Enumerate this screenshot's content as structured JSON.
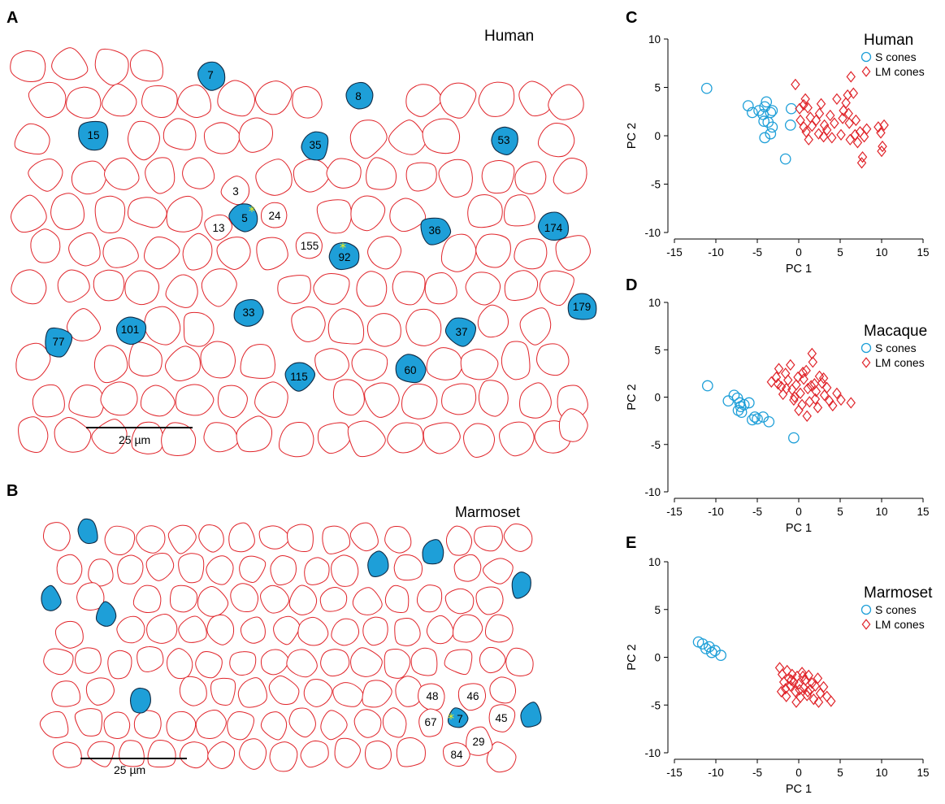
{
  "panels": {
    "A": {
      "letter": "A",
      "species": "Human",
      "scale_bar": "25 µm",
      "labels": [
        "7",
        "8",
        "15",
        "35",
        "53",
        "3",
        "5",
        "24",
        "13",
        "155",
        "92",
        "36",
        "174",
        "33",
        "101",
        "77",
        "37",
        "179",
        "115",
        "60"
      ]
    },
    "B": {
      "letter": "B",
      "species": "Marmoset",
      "scale_bar": "25 µm",
      "labels": [
        "48",
        "46",
        "67",
        "7",
        "45",
        "29",
        "84"
      ]
    },
    "C": {
      "letter": "C"
    },
    "D": {
      "letter": "D"
    },
    "E": {
      "letter": "E"
    }
  },
  "colors": {
    "s_cone": "#1e9fd8",
    "lm_cone": "#e0242a",
    "s_cone_marker": "#1e9fd8",
    "lm_cone_marker": "#e0242a",
    "star": "#f4f01a"
  },
  "chart_data": [
    {
      "id": "C",
      "type": "scatter",
      "title": "Human",
      "xlabel": "PC 1",
      "ylabel": "PC 2",
      "xlim": [
        -15,
        15
      ],
      "ylim": [
        -10,
        10
      ],
      "xticks": [
        "-15",
        "-10",
        "-5",
        "0",
        "5",
        "10",
        "15"
      ],
      "yticks": [
        "10",
        "5",
        "0",
        "-5",
        "-10"
      ],
      "legend_position": "top-right",
      "series": [
        {
          "name": "S cones",
          "marker": "circle",
          "color": "#1e9fd8",
          "points": [
            [
              -11.1,
              4.9
            ],
            [
              -6.1,
              3.1
            ],
            [
              -5.6,
              2.4
            ],
            [
              -4.8,
              2.6
            ],
            [
              -4.3,
              2.2
            ],
            [
              -3.9,
              3.5
            ],
            [
              -3.4,
              2.4
            ],
            [
              -3.2,
              2.6
            ],
            [
              -4.1,
              3.0
            ],
            [
              -3.7,
              1.4
            ],
            [
              -4.2,
              1.5
            ],
            [
              -3.2,
              0.9
            ],
            [
              -3.4,
              0.2
            ],
            [
              -4.1,
              -0.2
            ],
            [
              -0.9,
              2.8
            ],
            [
              -1.0,
              1.1
            ],
            [
              -1.6,
              -2.4
            ]
          ]
        },
        {
          "name": "LM cones",
          "marker": "diamond",
          "color": "#e0242a",
          "points": [
            [
              -0.4,
              5.3
            ],
            [
              0.1,
              2.8
            ],
            [
              0.6,
              3.2
            ],
            [
              0.8,
              3.8
            ],
            [
              1.1,
              2.9
            ],
            [
              0.2,
              1.6
            ],
            [
              0.6,
              0.9
            ],
            [
              0.9,
              0.4
            ],
            [
              1.2,
              -0.4
            ],
            [
              1.6,
              1.0
            ],
            [
              2.1,
              1.6
            ],
            [
              2.5,
              2.3
            ],
            [
              2.7,
              3.3
            ],
            [
              2.4,
              0.2
            ],
            [
              3.1,
              1.1
            ],
            [
              3.4,
              0.6
            ],
            [
              3.8,
              2.1
            ],
            [
              4.3,
              1.3
            ],
            [
              4.6,
              3.8
            ],
            [
              5.1,
              0.1
            ],
            [
              5.4,
              2.6
            ],
            [
              5.7,
              3.4
            ],
            [
              5.9,
              4.2
            ],
            [
              6.0,
              2.3
            ],
            [
              6.1,
              1.3
            ],
            [
              6.3,
              6.1
            ],
            [
              6.6,
              4.4
            ],
            [
              6.9,
              1.6
            ],
            [
              6.2,
              -0.4
            ],
            [
              6.8,
              0.1
            ],
            [
              7.1,
              -0.7
            ],
            [
              7.4,
              0.4
            ],
            [
              7.9,
              -0.1
            ],
            [
              8.2,
              0.7
            ],
            [
              7.7,
              -2.2
            ],
            [
              7.6,
              -2.8
            ],
            [
              9.6,
              0.9
            ],
            [
              9.9,
              0.3
            ],
            [
              10.1,
              -1.1
            ],
            [
              10.3,
              1.1
            ],
            [
              10.0,
              -1.6
            ],
            [
              5.3,
              1.8
            ],
            [
              4.0,
              -0.2
            ],
            [
              3.0,
              -0.1
            ],
            [
              1.4,
              1.9
            ]
          ]
        }
      ]
    },
    {
      "id": "D",
      "type": "scatter",
      "title": "Macaque",
      "xlabel": "PC 1",
      "ylabel": "PC 2",
      "xlim": [
        -15,
        15
      ],
      "ylim": [
        -10,
        10
      ],
      "xticks": [
        "-15",
        "-10",
        "-5",
        "0",
        "5",
        "10",
        "15"
      ],
      "yticks": [
        "10",
        "5",
        "0",
        "-5",
        "-10"
      ],
      "legend_position": "top-right",
      "series": [
        {
          "name": "S cones",
          "marker": "circle",
          "color": "#1e9fd8",
          "points": [
            [
              -11.0,
              1.2
            ],
            [
              -8.5,
              -0.4
            ],
            [
              -7.8,
              0.2
            ],
            [
              -7.4,
              -0.1
            ],
            [
              -7.1,
              -0.6
            ],
            [
              -7.3,
              -1.4
            ],
            [
              -6.9,
              -1.6
            ],
            [
              -6.6,
              -0.8
            ],
            [
              -6.0,
              -0.6
            ],
            [
              -5.6,
              -2.4
            ],
            [
              -5.3,
              -2.1
            ],
            [
              -5.0,
              -2.3
            ],
            [
              -4.3,
              -2.1
            ],
            [
              -3.6,
              -2.6
            ],
            [
              -0.6,
              -4.3
            ],
            [
              -7.0,
              -1.0
            ]
          ]
        },
        {
          "name": "LM cones",
          "marker": "diamond",
          "color": "#e0242a",
          "points": [
            [
              -3.3,
              1.6
            ],
            [
              -2.7,
              2.1
            ],
            [
              -2.4,
              3.0
            ],
            [
              -2.1,
              1.1
            ],
            [
              -1.9,
              0.3
            ],
            [
              -1.6,
              2.5
            ],
            [
              -1.3,
              1.8
            ],
            [
              -1.0,
              3.4
            ],
            [
              -0.8,
              0.8
            ],
            [
              -0.6,
              -0.3
            ],
            [
              -0.3,
              1.3
            ],
            [
              -0.1,
              2.1
            ],
            [
              0.2,
              0.4
            ],
            [
              0.4,
              -0.8
            ],
            [
              0.6,
              1.9
            ],
            [
              0.9,
              2.8
            ],
            [
              1.1,
              0.9
            ],
            [
              1.3,
              -0.5
            ],
            [
              1.6,
              4.6
            ],
            [
              1.7,
              3.7
            ],
            [
              1.9,
              1.4
            ],
            [
              2.1,
              0.6
            ],
            [
              2.3,
              -1.1
            ],
            [
              2.5,
              2.2
            ],
            [
              2.8,
              1.5
            ],
            [
              3.1,
              0.2
            ],
            [
              3.4,
              1.0
            ],
            [
              3.7,
              -0.4
            ],
            [
              4.1,
              -0.9
            ],
            [
              4.6,
              0.4
            ],
            [
              5.1,
              -0.3
            ],
            [
              6.3,
              -0.6
            ],
            [
              0.0,
              -1.4
            ],
            [
              1.0,
              -2.0
            ],
            [
              -0.5,
              0.0
            ],
            [
              2.0,
              -0.2
            ],
            [
              3.0,
              2.0
            ],
            [
              -1.5,
              0.9
            ],
            [
              0.5,
              2.6
            ],
            [
              -2.5,
              1.4
            ],
            [
              1.5,
              1.2
            ]
          ]
        }
      ]
    },
    {
      "id": "E",
      "type": "scatter",
      "title": "Marmoset",
      "xlabel": "PC 1",
      "ylabel": "PC 2",
      "xlim": [
        -15,
        15
      ],
      "ylim": [
        -10,
        10
      ],
      "xticks": [
        "-15",
        "-10",
        "-5",
        "0",
        "5",
        "10",
        "15"
      ],
      "yticks": [
        "10",
        "5",
        "0",
        "-5",
        "-10"
      ],
      "legend_position": "top-right",
      "series": [
        {
          "name": "S cones",
          "marker": "circle",
          "color": "#1e9fd8",
          "points": [
            [
              -12.1,
              1.6
            ],
            [
              -11.6,
              1.4
            ],
            [
              -11.2,
              0.9
            ],
            [
              -10.8,
              1.1
            ],
            [
              -10.5,
              0.5
            ],
            [
              -10.1,
              0.7
            ],
            [
              -9.4,
              0.2
            ]
          ]
        },
        {
          "name": "LM cones",
          "marker": "diamond",
          "color": "#e0242a",
          "points": [
            [
              -2.3,
              -1.1
            ],
            [
              -2.0,
              -1.8
            ],
            [
              -1.8,
              -2.6
            ],
            [
              -1.6,
              -3.3
            ],
            [
              -1.4,
              -1.4
            ],
            [
              -1.2,
              -2.2
            ],
            [
              -1.0,
              -3.0
            ],
            [
              -0.8,
              -1.8
            ],
            [
              -0.6,
              -2.6
            ],
            [
              -0.4,
              -3.6
            ],
            [
              -0.2,
              -2.0
            ],
            [
              0.0,
              -2.8
            ],
            [
              0.2,
              -4.2
            ],
            [
              0.4,
              -1.6
            ],
            [
              0.6,
              -3.2
            ],
            [
              0.8,
              -2.4
            ],
            [
              1.0,
              -4.0
            ],
            [
              1.2,
              -1.9
            ],
            [
              1.4,
              -3.4
            ],
            [
              1.6,
              -2.7
            ],
            [
              1.8,
              -4.4
            ],
            [
              2.0,
              -3.0
            ],
            [
              2.3,
              -2.2
            ],
            [
              2.6,
              -3.8
            ],
            [
              3.0,
              -3.1
            ],
            [
              3.4,
              -4.1
            ],
            [
              3.9,
              -4.6
            ],
            [
              -2.1,
              -3.6
            ],
            [
              -1.5,
              -4.1
            ],
            [
              -0.3,
              -4.7
            ],
            [
              0.5,
              -2.0
            ],
            [
              1.1,
              -3.6
            ],
            [
              2.4,
              -4.7
            ],
            [
              -0.9,
              -2.4
            ],
            [
              0.1,
              -3.4
            ]
          ]
        }
      ]
    }
  ]
}
